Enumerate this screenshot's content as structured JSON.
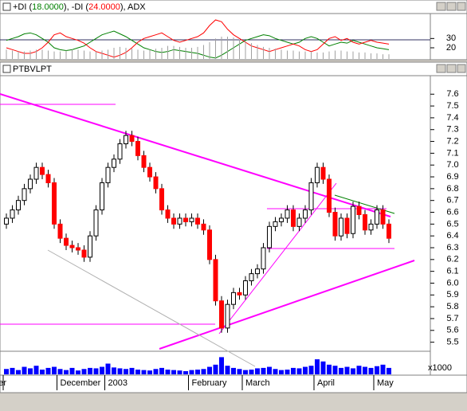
{
  "chart_data": [
    {
      "type": "dmi",
      "title_parts": [
        {
          "text": "+DI (",
          "color": "#000000"
        },
        {
          "text": "18.0000",
          "color": "#008000"
        },
        {
          "text": "), -DI (",
          "color": "#000000"
        },
        {
          "text": "24.0000",
          "color": "#ff0000"
        },
        {
          "text": "), ADX",
          "color": "#000000"
        }
      ],
      "ylim": [
        8,
        56
      ],
      "yticks": [
        20,
        30
      ],
      "series": [
        {
          "name": "+DI",
          "color": "#008000",
          "values": [
            28,
            30,
            32,
            35,
            36,
            34,
            30,
            26,
            20,
            18,
            17,
            18,
            20,
            22,
            26,
            30,
            34,
            36,
            38,
            35,
            32,
            28,
            24,
            20,
            18,
            16,
            15,
            16,
            18,
            17,
            16,
            15,
            14,
            12,
            10,
            9,
            12,
            16,
            20,
            24,
            28,
            30,
            32,
            34,
            33,
            30,
            28,
            26,
            24,
            26,
            30,
            32,
            30,
            26,
            22,
            24,
            26,
            25,
            28,
            26,
            24,
            22,
            20,
            19,
            18
          ]
        },
        {
          "name": "-DI",
          "color": "#ff0000",
          "values": [
            20,
            18,
            16,
            14,
            14,
            16,
            20,
            26,
            34,
            36,
            32,
            30,
            28,
            25,
            20,
            16,
            14,
            12,
            10,
            12,
            15,
            20,
            26,
            30,
            32,
            34,
            36,
            32,
            28,
            26,
            28,
            30,
            32,
            36,
            44,
            50,
            48,
            40,
            34,
            30,
            26,
            22,
            20,
            18,
            16,
            18,
            20,
            22,
            24,
            22,
            18,
            16,
            18,
            24,
            30,
            32,
            28,
            30,
            26,
            24,
            26,
            28,
            26,
            25,
            24
          ]
        },
        {
          "name": "ADX",
          "color": "#a0a0a0",
          "values": [
            18,
            17,
            16,
            16,
            17,
            18,
            18,
            17,
            16,
            16,
            17,
            18,
            18,
            17,
            16,
            16,
            17,
            18,
            20,
            21,
            20,
            19,
            18,
            17,
            18,
            19,
            20,
            22,
            22,
            21,
            20,
            20,
            21,
            23,
            26,
            30,
            32,
            32,
            31,
            29,
            27,
            25,
            23,
            21,
            20,
            19,
            18,
            17,
            17,
            16,
            16,
            16,
            15,
            15,
            16,
            17,
            17,
            16,
            16,
            15,
            15,
            14,
            14,
            13,
            13
          ]
        }
      ]
    },
    {
      "type": "candlestick",
      "title": "PTBVLPT",
      "categories": [
        "ber",
        null,
        null,
        null,
        null,
        null,
        null,
        null,
        null,
        "December",
        null,
        null,
        null,
        null,
        null,
        null,
        null,
        "2003",
        null,
        null,
        null,
        null,
        null,
        null,
        null,
        null,
        null,
        null,
        null,
        null,
        null,
        "February",
        null,
        null,
        null,
        null,
        null,
        null,
        null,
        null,
        "March",
        null,
        null,
        null,
        null,
        null,
        null,
        null,
        null,
        null,
        null,
        null,
        "April",
        null,
        null,
        null,
        null,
        null,
        null,
        null,
        null,
        null,
        "May",
        null,
        null
      ],
      "open": [
        6.5,
        6.55,
        6.62,
        6.7,
        6.8,
        6.88,
        6.98,
        6.92,
        6.85,
        6.5,
        6.38,
        6.32,
        6.3,
        6.28,
        6.22,
        6.4,
        6.62,
        6.85,
        6.98,
        7.05,
        7.18,
        7.25,
        7.2,
        7.08,
        6.98,
        6.9,
        6.8,
        6.62,
        6.55,
        6.5,
        6.55,
        6.52,
        6.55,
        6.5,
        6.45,
        6.2,
        5.85,
        5.62,
        5.82,
        5.92,
        5.9,
        6.02,
        6.08,
        6.12,
        6.3,
        6.48,
        6.52,
        6.55,
        6.62,
        6.48,
        6.55,
        6.62,
        6.85,
        6.98,
        6.88,
        6.6,
        6.4,
        6.55,
        6.42,
        6.65,
        6.58,
        6.45,
        6.5,
        6.62,
        6.5
      ],
      "high": [
        6.59,
        6.66,
        6.74,
        6.84,
        6.92,
        7.02,
        7.02,
        6.96,
        6.89,
        6.54,
        6.42,
        6.36,
        6.34,
        6.32,
        6.44,
        6.66,
        6.89,
        7.02,
        7.09,
        7.22,
        7.29,
        7.29,
        7.24,
        7.12,
        7.02,
        6.94,
        6.84,
        6.66,
        6.59,
        6.59,
        6.59,
        6.59,
        6.59,
        6.54,
        6.49,
        6.24,
        5.89,
        5.86,
        5.96,
        5.96,
        6.06,
        6.12,
        6.16,
        6.34,
        6.52,
        6.56,
        6.59,
        6.66,
        6.66,
        6.59,
        6.66,
        6.89,
        7.02,
        7.02,
        6.92,
        6.64,
        6.59,
        6.59,
        6.69,
        6.69,
        6.62,
        6.54,
        6.66,
        6.66,
        6.54
      ],
      "low": [
        6.46,
        6.51,
        6.58,
        6.66,
        6.76,
        6.84,
        6.88,
        6.81,
        6.46,
        6.34,
        6.28,
        6.26,
        6.24,
        6.18,
        6.18,
        6.36,
        6.58,
        6.81,
        6.94,
        7.01,
        7.14,
        7.16,
        7.04,
        6.94,
        6.86,
        6.76,
        6.58,
        6.51,
        6.46,
        6.46,
        6.48,
        6.48,
        6.46,
        6.41,
        6.16,
        5.81,
        5.58,
        5.58,
        5.78,
        5.86,
        5.86,
        5.98,
        6.04,
        6.08,
        6.26,
        6.44,
        6.48,
        6.51,
        6.44,
        6.44,
        6.51,
        6.58,
        6.81,
        6.84,
        6.56,
        6.36,
        6.36,
        6.38,
        6.38,
        6.54,
        6.41,
        6.41,
        6.46,
        6.46,
        6.34
      ],
      "close": [
        6.55,
        6.62,
        6.7,
        6.8,
        6.88,
        6.98,
        6.92,
        6.85,
        6.5,
        6.38,
        6.32,
        6.3,
        6.28,
        6.22,
        6.4,
        6.62,
        6.85,
        6.98,
        7.05,
        7.18,
        7.25,
        7.2,
        7.08,
        6.98,
        6.9,
        6.8,
        6.62,
        6.55,
        6.5,
        6.55,
        6.52,
        6.55,
        6.5,
        6.45,
        6.2,
        5.85,
        5.62,
        5.82,
        5.92,
        5.9,
        6.02,
        6.08,
        6.12,
        6.3,
        6.48,
        6.52,
        6.55,
        6.62,
        6.48,
        6.55,
        6.62,
        6.85,
        6.98,
        6.88,
        6.6,
        6.4,
        6.55,
        6.42,
        6.65,
        6.58,
        6.45,
        6.5,
        6.62,
        6.5,
        6.38
      ],
      "up_color": "#ffffff",
      "down_color": "#ff0000",
      "ylim": [
        5.43,
        7.75
      ],
      "yticks": [
        5.5,
        5.6,
        5.7,
        5.8,
        5.9,
        {
          "value": 6,
          "label": "6.0"
        },
        6.1,
        6.2,
        6.3,
        6.4,
        6.5,
        6.6,
        6.7,
        6.8,
        6.9,
        {
          "value": 7,
          "label": "7.0"
        },
        7.1,
        7.2,
        7.3,
        7.4,
        7.5,
        7.6
      ],
      "volume_unit": "x1000",
      "volume_color": "#0000ff",
      "vlim": [
        0,
        100
      ],
      "volume": [
        25,
        30,
        20,
        35,
        28,
        40,
        22,
        30,
        35,
        25,
        20,
        30,
        18,
        25,
        30,
        28,
        35,
        50,
        32,
        28,
        25,
        30,
        22,
        20,
        18,
        25,
        30,
        22,
        20,
        18,
        15,
        20,
        22,
        25,
        35,
        45,
        80,
        40,
        30,
        25,
        20,
        22,
        28,
        30,
        35,
        25,
        20,
        22,
        30,
        28,
        35,
        40,
        70,
        60,
        45,
        40,
        30,
        35,
        28,
        40,
        35,
        30,
        38,
        45,
        30
      ]
    }
  ]
}
